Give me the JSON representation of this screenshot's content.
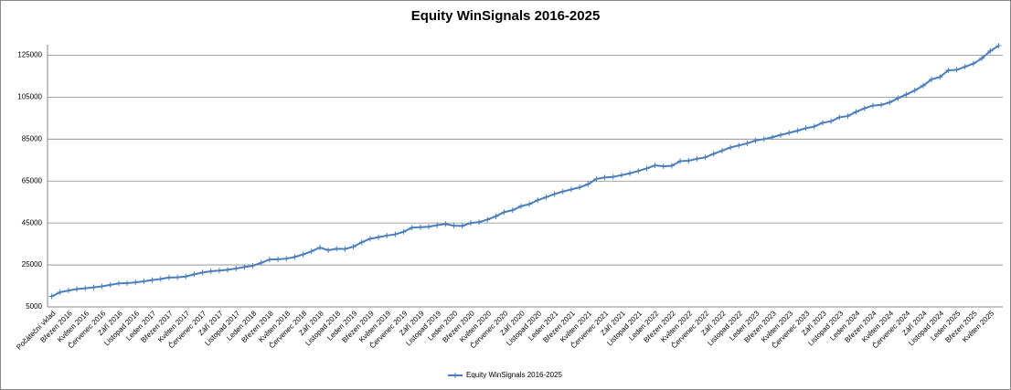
{
  "chart_data": {
    "type": "line",
    "title": "Equity WinSignals 2016-2025",
    "categories": [
      "Počáteční vklad",
      null,
      "Březen 2016",
      null,
      "Květen 2016",
      null,
      "Červenec 2016",
      null,
      "Září 2016",
      null,
      "Listopad 2016",
      null,
      "Leden 2017",
      null,
      "Březen 2017",
      null,
      "Květen 2017",
      null,
      "Červenec 2017",
      null,
      "Září 2017",
      null,
      "Listopad 2017",
      null,
      "Leden 2018",
      null,
      "Březen 2018",
      null,
      "Květen 2018",
      null,
      "Červenec 2018",
      null,
      "Září 2018",
      null,
      "Listopad 2018",
      null,
      "Leden 2019",
      null,
      "Březen 2019",
      null,
      "Květen 2019",
      null,
      "Červenec 2019",
      null,
      "Září 2019",
      null,
      "Listopad 2019",
      null,
      "Leden 2020",
      null,
      "Březen 2020",
      null,
      "Květen 2020",
      null,
      "Červenec 2020",
      null,
      "Září 2020",
      null,
      "Listopad 2020",
      null,
      "Leden 2021",
      null,
      "Březen 2021",
      null,
      "Květen 2021",
      null,
      "Červenec 2021",
      null,
      "Září 2021",
      null,
      "Listopad 2021",
      null,
      "Leden 2022",
      null,
      "Březen 2022",
      null,
      "Květen 2022",
      null,
      "Červenec 2022",
      null,
      "Září 2022",
      null,
      "Listopad 2022",
      null,
      "Leden 2023",
      null,
      "Březen 2023",
      null,
      "Květen 2023",
      null,
      "Červenec 2023",
      null,
      "Září 2023",
      null,
      "Listopad 2023",
      null,
      "Leden 2024",
      null,
      "Březen 2024",
      null,
      "Květen 2024",
      null,
      "Červenec 2024",
      null,
      "Září 2024",
      null,
      "Listopad 2024",
      null,
      "Leden 2025",
      null,
      "Březen 2025",
      null,
      "Květen 2025",
      null
    ],
    "series": [
      {
        "name": "Equity WinSignals 2016-2025",
        "color": "#4a7ebb",
        "values": [
          10000,
          12000,
          12800,
          13500,
          13900,
          14300,
          14800,
          15500,
          16200,
          16300,
          16700,
          17200,
          17800,
          18300,
          19000,
          19100,
          19500,
          20500,
          21400,
          22000,
          22300,
          22700,
          23300,
          24000,
          24600,
          26000,
          27600,
          27700,
          28000,
          28800,
          30000,
          31500,
          33300,
          32000,
          32700,
          32600,
          33700,
          35800,
          37500,
          38200,
          39000,
          39600,
          40800,
          42800,
          43000,
          43200,
          44000,
          44500,
          43700,
          43600,
          45000,
          45400,
          46600,
          48200,
          50200,
          51100,
          53000,
          54000,
          55900,
          57300,
          58800,
          60000,
          61000,
          62000,
          63500,
          66000,
          66700,
          67000,
          67800,
          68700,
          69800,
          71000,
          72500,
          72000,
          72300,
          74500,
          74700,
          75600,
          76300,
          78000,
          79500,
          81000,
          82000,
          83000,
          84300,
          85000,
          85900,
          87000,
          88000,
          89000,
          90200,
          91000,
          92800,
          93500,
          95400,
          96000,
          98000,
          99700,
          101000,
          101300,
          102500,
          104500,
          106300,
          108200,
          110500,
          113500,
          114600,
          117800,
          118000,
          119500,
          121000,
          123500,
          127000,
          129500
        ]
      }
    ],
    "ylim": [
      5000,
      130000
    ],
    "yticks": [
      5000,
      25000,
      45000,
      65000,
      85000,
      105000,
      125000
    ],
    "grid": true,
    "legend": "bottom"
  }
}
